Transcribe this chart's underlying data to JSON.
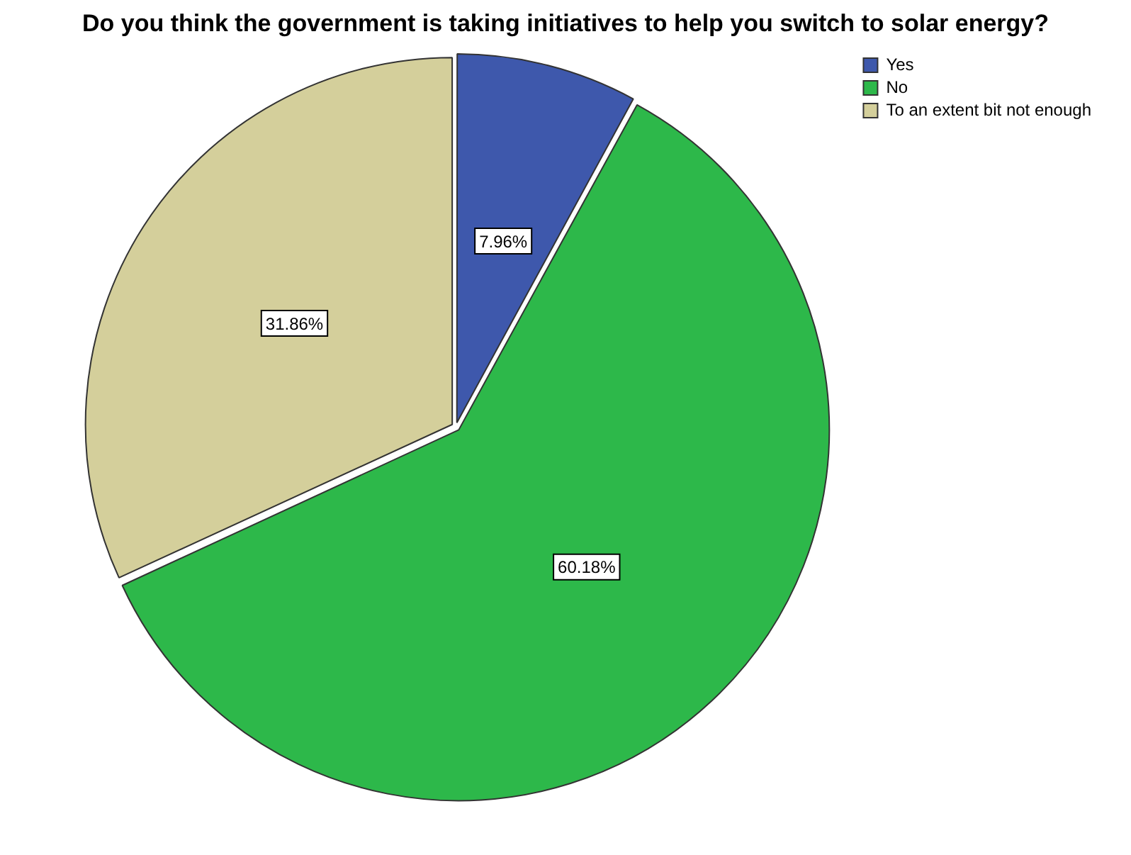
{
  "chart_data": {
    "type": "pie",
    "title": "Do you think the government is taking initiatives to help you switch to solar energy?",
    "categories": [
      "Yes",
      "No",
      "To an extent bit not enough"
    ],
    "values": [
      7.96,
      60.18,
      31.86
    ],
    "value_labels": [
      "7.96%",
      "60.18%",
      "31.86%"
    ],
    "colors": [
      "#3e58ac",
      "#2db84a",
      "#d4cf9b"
    ],
    "legend": "top right"
  }
}
